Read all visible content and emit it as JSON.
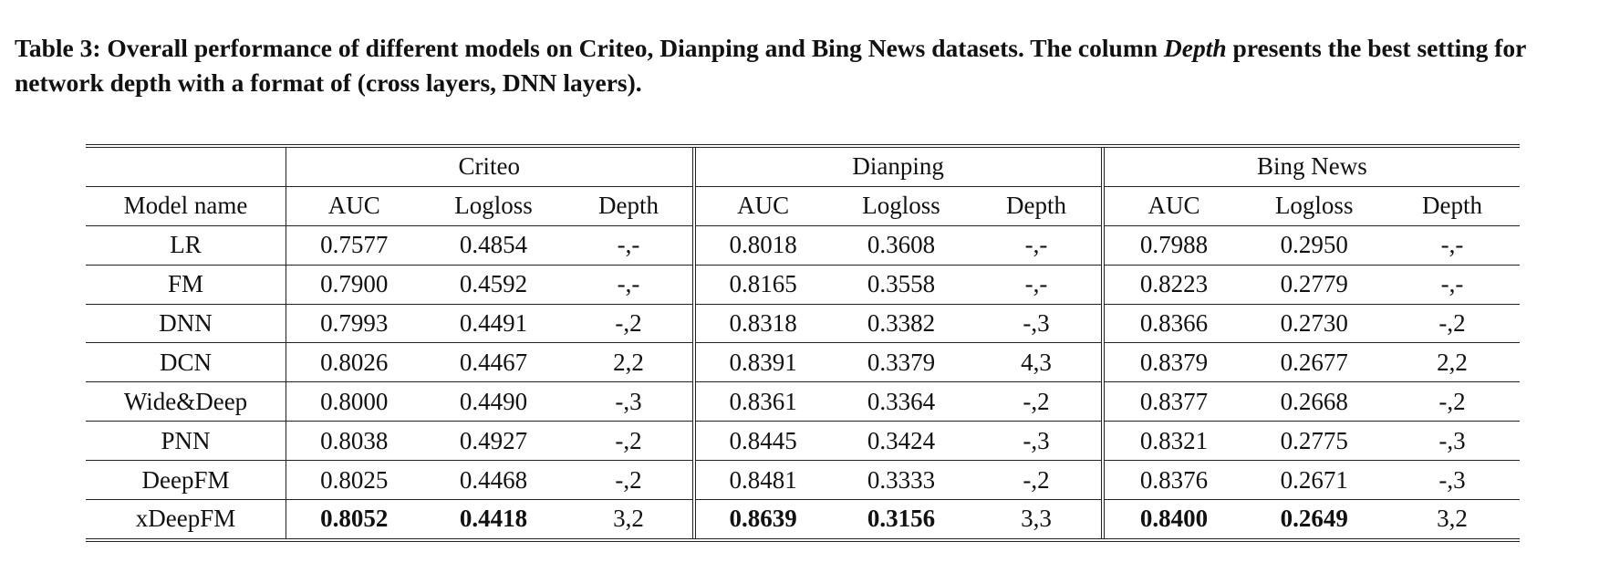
{
  "caption": {
    "part1": "Table 3: Overall performance of different models on Criteo, Dianping and Bing News datasets. The column ",
    "italic": "Depth",
    "part2": " presents the best setting for network depth with a format of (cross layers, DNN layers)."
  },
  "table": {
    "datasets": [
      "Criteo",
      "Dianping",
      "Bing News"
    ],
    "first_col_header": "Model name",
    "metric_headers": [
      "AUC",
      "Logloss",
      "Depth"
    ],
    "rows": [
      {
        "model": "LR",
        "values": [
          "0.7577",
          "0.4854",
          "-,-",
          "0.8018",
          "0.3608",
          "-,-",
          "0.7988",
          "0.2950",
          "-,-"
        ]
      },
      {
        "model": "FM",
        "values": [
          "0.7900",
          "0.4592",
          "-,-",
          "0.8165",
          "0.3558",
          "-,-",
          "0.8223",
          "0.2779",
          "-,-"
        ]
      },
      {
        "model": "DNN",
        "values": [
          "0.7993",
          "0.4491",
          "-,2",
          "0.8318",
          "0.3382",
          "-,3",
          "0.8366",
          "0.2730",
          "-,2"
        ]
      },
      {
        "model": "DCN",
        "values": [
          "0.8026",
          "0.4467",
          "2,2",
          "0.8391",
          "0.3379",
          "4,3",
          "0.8379",
          "0.2677",
          "2,2"
        ]
      },
      {
        "model": "Wide&Deep",
        "values": [
          "0.8000",
          "0.4490",
          "-,3",
          "0.8361",
          "0.3364",
          "-,2",
          "0.8377",
          "0.2668",
          "-,2"
        ]
      },
      {
        "model": "PNN",
        "values": [
          "0.8038",
          "0.4927",
          "-,2",
          "0.8445",
          "0.3424",
          "-,3",
          "0.8321",
          "0.2775",
          "-,3"
        ]
      },
      {
        "model": "DeepFM",
        "values": [
          "0.8025",
          "0.4468",
          "-,2",
          "0.8481",
          "0.3333",
          "-,2",
          "0.8376",
          "0.2671",
          "-,3"
        ]
      },
      {
        "model": "xDeepFM",
        "values": [
          "0.8052",
          "0.4418",
          "3,2",
          "0.8639",
          "0.3156",
          "3,3",
          "0.8400",
          "0.2649",
          "3,2"
        ]
      }
    ],
    "bold_row": "xDeepFM"
  }
}
